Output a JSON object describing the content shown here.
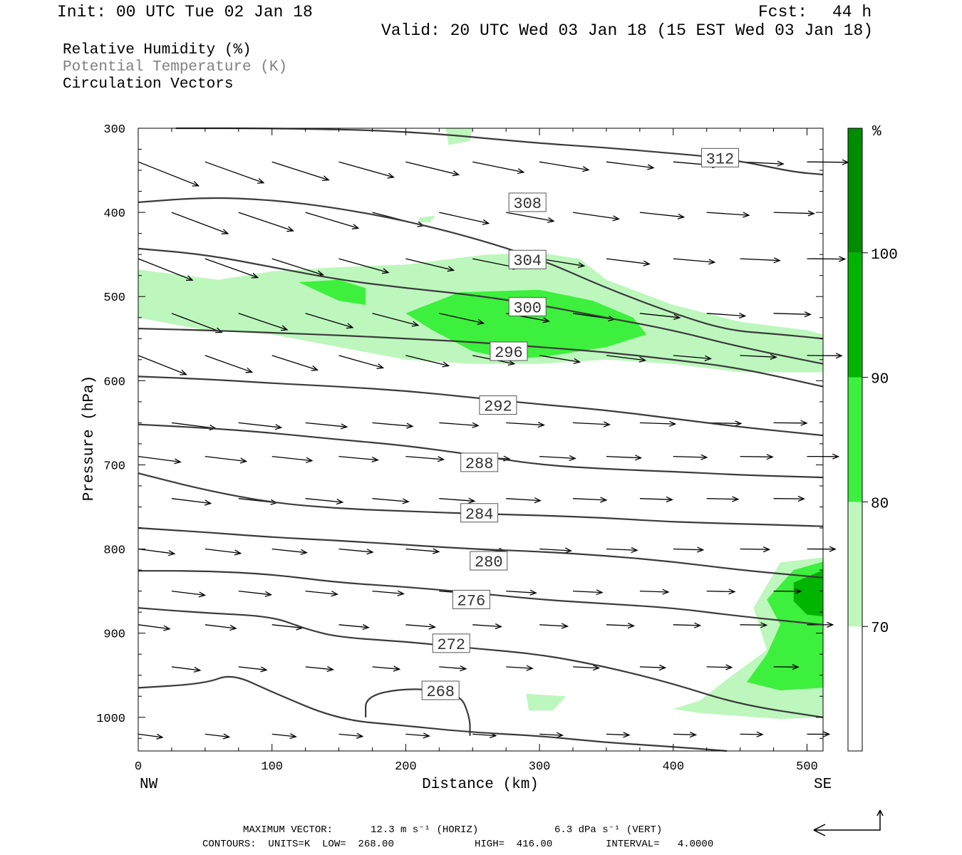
{
  "header": {
    "init": "Init: 00 UTC Tue 02 Jan 18",
    "fcst_label": "Fcst:",
    "fcst_value": "44 h",
    "valid": "Valid: 20 UTC Wed 03 Jan 18 (15 EST Wed 03 Jan 18)"
  },
  "legend": {
    "line1": "Relative Humidity (%)",
    "line2": "Potential Temperature (K)",
    "line3": "Circulation Vectors"
  },
  "colors": {
    "rh_70": "#bdf7bd",
    "rh_80": "#3df03d",
    "rh_90": "#00b400",
    "rh_100": "#008c00",
    "contour": "#3a3a3a"
  },
  "chart_data": {
    "type": "contour",
    "xlabel": "Distance (km)",
    "ylabel": "Pressure (hPa)",
    "x_left_label": "NW",
    "x_right_label": "SE",
    "xlim": [
      0,
      512
    ],
    "ylim": [
      300,
      1040
    ],
    "x_ticks": [
      "0",
      "100",
      "200",
      "300",
      "400",
      "500"
    ],
    "x_tick_values": [
      0,
      100,
      200,
      300,
      400,
      500
    ],
    "y_ticks": [
      "300",
      "400",
      "500",
      "600",
      "700",
      "800",
      "900",
      "1000"
    ],
    "y_tick_values": [
      300,
      400,
      500,
      600,
      700,
      800,
      900,
      1000
    ],
    "colorbar": {
      "unit": "%",
      "levels": [
        "70",
        "80",
        "90",
        "100"
      ],
      "colors": [
        "#ffffff",
        "#bdf7bd",
        "#3df03d",
        "#00b400",
        "#008c00"
      ]
    },
    "theta_contours": [
      {
        "level": 312,
        "label": "312",
        "label_at": [
          435,
          335
        ],
        "points": [
          [
            28,
            300
          ],
          [
            100,
            300
          ],
          [
            200,
            303
          ],
          [
            300,
            318
          ],
          [
            350,
            323
          ],
          [
            400,
            330
          ],
          [
            430,
            334
          ],
          [
            460,
            342
          ],
          [
            490,
            352
          ],
          [
            512,
            355
          ]
        ]
      },
      {
        "level": 308,
        "label": "308",
        "label_at": [
          291,
          388
        ],
        "points": [
          [
            0,
            388
          ],
          [
            50,
            382
          ],
          [
            100,
            385
          ],
          [
            150,
            395
          ],
          [
            200,
            410
          ],
          [
            250,
            430
          ],
          [
            300,
            455
          ],
          [
            350,
            490
          ],
          [
            400,
            520
          ],
          [
            440,
            540
          ],
          [
            480,
            545
          ],
          [
            512,
            550
          ]
        ]
      },
      {
        "level": 304,
        "label": "304",
        "label_at": [
          291,
          456
        ],
        "points": [
          [
            0,
            443
          ],
          [
            50,
            450
          ],
          [
            100,
            465
          ],
          [
            150,
            480
          ],
          [
            200,
            490
          ],
          [
            250,
            498
          ],
          [
            300,
            510
          ],
          [
            350,
            525
          ],
          [
            400,
            540
          ],
          [
            450,
            560
          ],
          [
            512,
            580
          ]
        ]
      },
      {
        "level": 300,
        "label": "300",
        "label_at": [
          291,
          512
        ],
        "points": [
          [
            0,
            538
          ],
          [
            50,
            540
          ],
          [
            100,
            543
          ],
          [
            150,
            546
          ],
          [
            200,
            550
          ],
          [
            250,
            554
          ],
          [
            300,
            560
          ],
          [
            350,
            566
          ],
          [
            400,
            575
          ],
          [
            450,
            585
          ],
          [
            512,
            607
          ]
        ]
      },
      {
        "level": 296,
        "label": "296",
        "label_at": [
          277,
          565
        ],
        "points": [
          [
            0,
            595
          ],
          [
            50,
            598
          ],
          [
            100,
            603
          ],
          [
            150,
            607
          ],
          [
            200,
            612
          ],
          [
            250,
            620
          ],
          [
            300,
            628
          ],
          [
            350,
            635
          ],
          [
            400,
            645
          ],
          [
            450,
            655
          ],
          [
            512,
            665
          ]
        ]
      },
      {
        "level": 292,
        "label": "292",
        "label_at": [
          269,
          629
        ],
        "points": [
          [
            0,
            652
          ],
          [
            50,
            656
          ],
          [
            100,
            662
          ],
          [
            150,
            670
          ],
          [
            200,
            677
          ],
          [
            250,
            688
          ],
          [
            300,
            700
          ],
          [
            350,
            705
          ],
          [
            400,
            708
          ],
          [
            450,
            712
          ],
          [
            512,
            715
          ]
        ]
      },
      {
        "level": 288,
        "label": "288",
        "label_at": [
          255,
          697
        ],
        "points": [
          [
            0,
            710
          ],
          [
            50,
            730
          ],
          [
            100,
            745
          ],
          [
            150,
            752
          ],
          [
            200,
            755
          ],
          [
            250,
            758
          ],
          [
            300,
            760
          ],
          [
            350,
            763
          ],
          [
            400,
            768
          ],
          [
            450,
            770
          ],
          [
            512,
            773
          ]
        ]
      },
      {
        "level": 284,
        "label": "284",
        "label_at": [
          255,
          757
        ],
        "points": [
          [
            0,
            775
          ],
          [
            50,
            780
          ],
          [
            100,
            786
          ],
          [
            150,
            790
          ],
          [
            200,
            795
          ],
          [
            250,
            800
          ],
          [
            300,
            803
          ],
          [
            350,
            808
          ],
          [
            400,
            815
          ],
          [
            450,
            825
          ],
          [
            512,
            834
          ]
        ]
      },
      {
        "level": 280,
        "label": "280",
        "label_at": [
          262,
          814
        ],
        "points": [
          [
            0,
            826
          ],
          [
            50,
            826
          ],
          [
            100,
            830
          ],
          [
            150,
            840
          ],
          [
            200,
            845
          ],
          [
            250,
            852
          ],
          [
            300,
            860
          ],
          [
            350,
            865
          ],
          [
            400,
            870
          ],
          [
            450,
            880
          ],
          [
            512,
            890
          ]
        ]
      },
      {
        "level": 276,
        "label": "276",
        "label_at": [
          249,
          860
        ],
        "points": [
          [
            0,
            870
          ],
          [
            50,
            876
          ],
          [
            100,
            880
          ],
          [
            125,
            895
          ],
          [
            150,
            905
          ],
          [
            200,
            910
          ],
          [
            250,
            918
          ],
          [
            300,
            925
          ],
          [
            350,
            940
          ],
          [
            400,
            960
          ],
          [
            450,
            985
          ],
          [
            512,
            1000
          ]
        ]
      },
      {
        "level": 272,
        "label": "272",
        "label_at": [
          234,
          912
        ],
        "points": [
          [
            0,
            965
          ],
          [
            50,
            960
          ],
          [
            70,
            948
          ],
          [
            100,
            970
          ],
          [
            150,
            1003
          ],
          [
            200,
            1010
          ],
          [
            250,
            1018
          ],
          [
            300,
            1022
          ],
          [
            350,
            1030
          ],
          [
            400,
            1035
          ],
          [
            440,
            1040
          ]
        ]
      },
      {
        "level": 268,
        "label": "268",
        "label_at": [
          226,
          968
        ],
        "points": [
          [
            170,
            1000
          ],
          [
            170,
            975
          ],
          [
            200,
            965
          ],
          [
            240,
            970
          ],
          [
            248,
            1000
          ],
          [
            248,
            1022
          ]
        ]
      }
    ],
    "rh_regions": [
      {
        "level": "70",
        "points": [
          [
            0,
            468
          ],
          [
            60,
            480
          ],
          [
            100,
            470
          ],
          [
            150,
            465
          ],
          [
            200,
            462
          ],
          [
            260,
            450
          ],
          [
            300,
            448
          ],
          [
            330,
            455
          ],
          [
            350,
            480
          ],
          [
            400,
            510
          ],
          [
            450,
            530
          ],
          [
            500,
            540
          ],
          [
            512,
            545
          ],
          [
            512,
            590
          ],
          [
            450,
            590
          ],
          [
            400,
            580
          ],
          [
            350,
            575
          ],
          [
            300,
            580
          ],
          [
            250,
            580
          ],
          [
            200,
            575
          ],
          [
            150,
            560
          ],
          [
            100,
            545
          ],
          [
            50,
            540
          ],
          [
            0,
            525
          ]
        ]
      },
      {
        "level": "70",
        "points": [
          [
            230,
            300
          ],
          [
            250,
            300
          ],
          [
            248,
            315
          ],
          [
            232,
            320
          ]
        ]
      },
      {
        "level": "70",
        "points": [
          [
            210,
            406
          ],
          [
            222,
            404
          ],
          [
            218,
            412
          ],
          [
            210,
            412
          ]
        ]
      },
      {
        "level": "70",
        "points": [
          [
            480,
            816
          ],
          [
            512,
            810
          ],
          [
            512,
            1000
          ],
          [
            480,
            1002
          ],
          [
            420,
            995
          ],
          [
            400,
            990
          ],
          [
            420,
            980
          ],
          [
            440,
            955
          ],
          [
            470,
            920
          ],
          [
            460,
            870
          ]
        ]
      },
      {
        "level": "70",
        "points": [
          [
            290,
            972
          ],
          [
            320,
            975
          ],
          [
            310,
            992
          ],
          [
            292,
            992
          ]
        ]
      },
      {
        "level": "80",
        "points": [
          [
            120,
            483
          ],
          [
            150,
            480
          ],
          [
            170,
            490
          ],
          [
            170,
            510
          ],
          [
            150,
            505
          ]
        ]
      },
      {
        "level": "80",
        "points": [
          [
            200,
            520
          ],
          [
            240,
            495
          ],
          [
            300,
            492
          ],
          [
            340,
            505
          ],
          [
            370,
            525
          ],
          [
            380,
            545
          ],
          [
            350,
            560
          ],
          [
            310,
            570
          ],
          [
            280,
            575
          ],
          [
            250,
            565
          ],
          [
            220,
            540
          ]
        ]
      },
      {
        "level": "80",
        "points": [
          [
            490,
            825
          ],
          [
            512,
            815
          ],
          [
            512,
            965
          ],
          [
            480,
            968
          ],
          [
            455,
            958
          ],
          [
            470,
            925
          ],
          [
            480,
            890
          ],
          [
            470,
            860
          ]
        ]
      },
      {
        "level": "90",
        "points": [
          [
            490,
            840
          ],
          [
            512,
            825
          ],
          [
            512,
            880
          ],
          [
            500,
            878
          ],
          [
            490,
            862
          ]
        ]
      }
    ],
    "max_vector_label": "MAXIMUM VECTOR:",
    "max_vector_horiz": "12.3 m s⁻¹ (HORIZ)",
    "max_vector_vert": "6.3 dPa s⁻¹ (VERT)",
    "contours_units": "CONTOURS:  UNITS=K  LOW=  268.00",
    "contours_high": "HIGH=  416.00",
    "contours_interval": "INTERVAL=   4.0000",
    "vector_grid_x": [
      0,
      50,
      100,
      150,
      200,
      250,
      300,
      350,
      400,
      450,
      500
    ],
    "vector_grid_p": [
      340,
      400,
      455,
      520,
      570,
      650,
      690,
      740,
      800,
      850,
      890,
      940,
      1020
    ]
  }
}
